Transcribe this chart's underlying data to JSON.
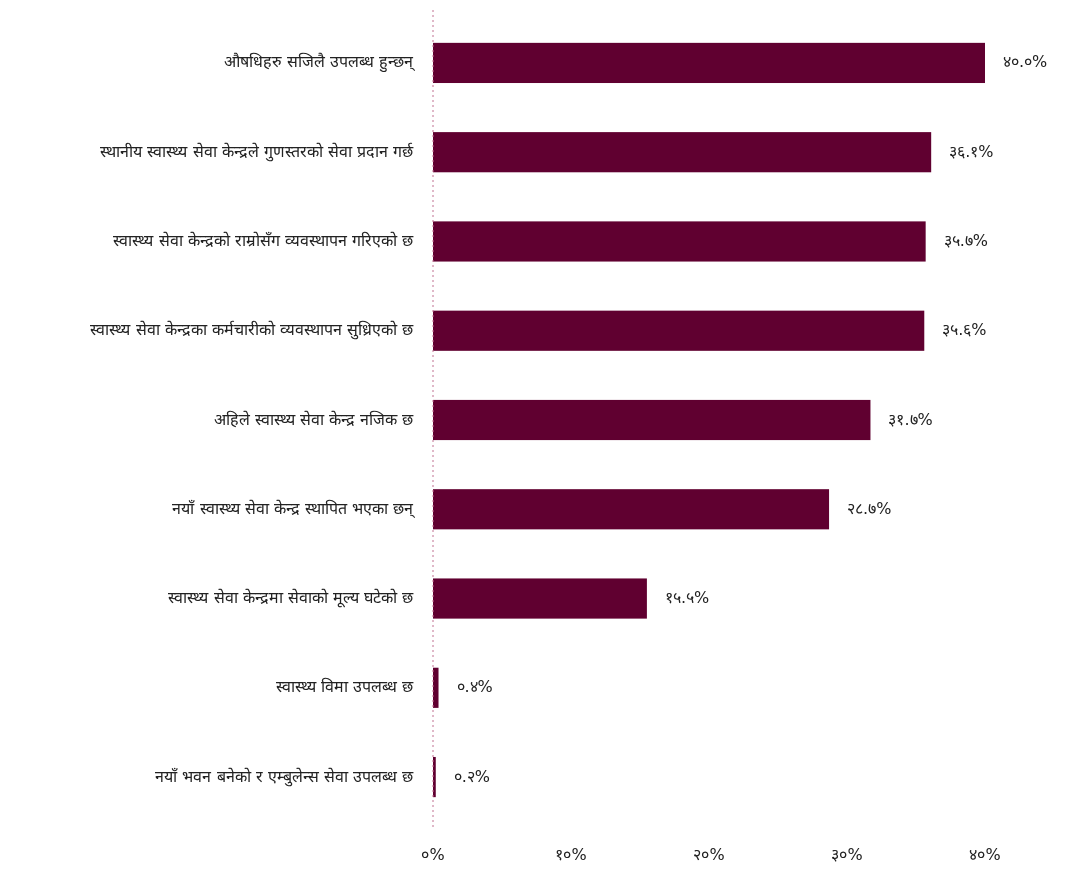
{
  "chart_data": {
    "type": "bar",
    "orientation": "horizontal",
    "categories": [
      "औषधिहरु सजिलै उपलब्ध हुन्छन्",
      "स्थानीय स्वास्थ्य सेवा केन्द्रले गुणस्तरको सेवा प्रदान गर्छ",
      "स्वास्थ्य सेवा केन्द्रको राम्रोसँग व्यवस्थापन गरिएको छ",
      "स्वास्थ्य सेवा केन्द्रका कर्मचारीको व्यवस्थापन सुध्रिएको छ",
      "अहिले स्वास्थ्य सेवा केन्द्र नजिक छ",
      "नयाँ स्वास्थ्य सेवा केन्द्र स्थापित भएका छन्",
      "स्वास्थ्य सेवा केन्द्रमा सेवाको मूल्य घटेको छ",
      "स्वास्थ्य विमा उपलब्ध छ",
      "नयाँ भवन बनेको र एम्बुलेन्स सेवा उपलब्ध छ"
    ],
    "values": [
      40.0,
      36.1,
      35.7,
      35.6,
      31.7,
      28.7,
      15.5,
      0.4,
      0.2
    ],
    "value_labels": [
      "४०.०%",
      "३६.१%",
      "३५.७%",
      "३५.६%",
      "३१.७%",
      "२८.७%",
      "१५.५%",
      "०.४%",
      "०.२%"
    ],
    "color": "#600030",
    "xlim": [
      0,
      40
    ],
    "xticks": [
      {
        "value": 0,
        "label": "०%"
      },
      {
        "value": 10,
        "label": "१०%"
      },
      {
        "value": 20,
        "label": "२०%"
      },
      {
        "value": 30,
        "label": "३०%"
      },
      {
        "value": 40,
        "label": "४०%"
      }
    ],
    "grid": false
  }
}
